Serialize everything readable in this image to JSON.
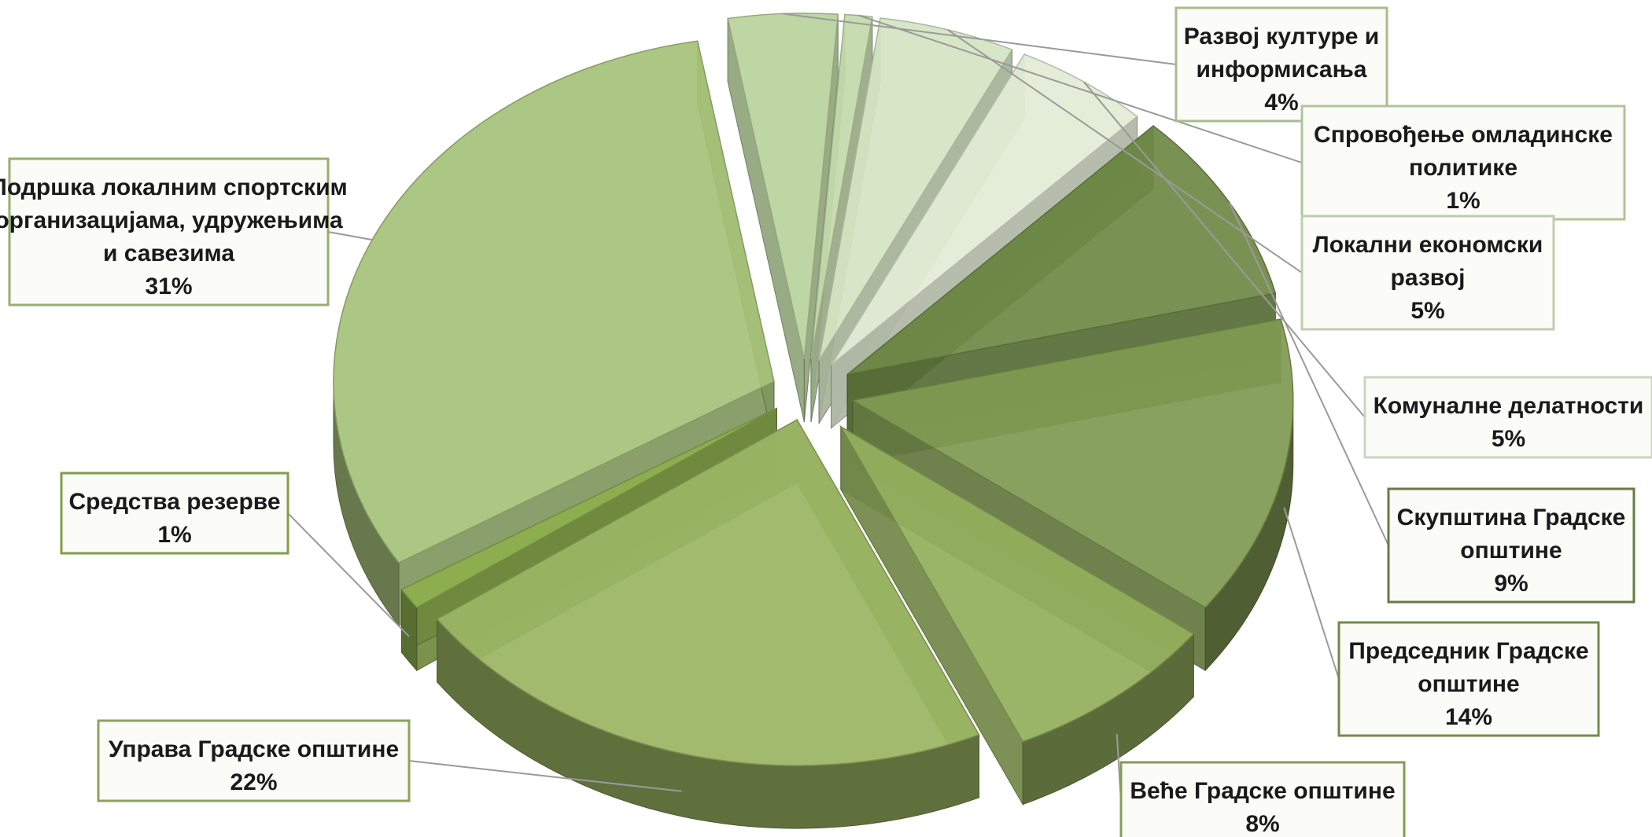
{
  "chart_data": {
    "type": "pie",
    "style": "3d-exploded",
    "legend": "none",
    "slices": [
      {
        "label": "Развој културе и информисања",
        "value": 4,
        "value_label": "4%",
        "color": "#b9d29d"
      },
      {
        "label": "Спровођење омладинске политике",
        "value": 1,
        "value_label": "1%",
        "color": "#c3d9aa"
      },
      {
        "label": "Локални економски развој",
        "value": 5,
        "value_label": "5%",
        "color": "#d4e4c2"
      },
      {
        "label": "Комуналне делатности",
        "value": 5,
        "value_label": "5%",
        "color": "#e2ecd5"
      },
      {
        "label": "Скупштина Градске општине",
        "value": 9,
        "value_label": "9%",
        "color": "#6f8a47"
      },
      {
        "label": "Председник Градске општине",
        "value": 14,
        "value_label": "14%",
        "color": "#7f9a52"
      },
      {
        "label": "Веће Градске општине",
        "value": 8,
        "value_label": "8%",
        "color": "#92ae5d"
      },
      {
        "label": "Управа Градске општине",
        "value": 22,
        "value_label": "22%",
        "color": "#9ab563"
      },
      {
        "label": "Средства резерве",
        "value": 1,
        "value_label": "1%",
        "color": "#8fb050"
      },
      {
        "label": "Подршка локалним спортским организацијама, удружењима и савезима",
        "value": 31,
        "value_label": "31%",
        "color": "#a6c27a"
      }
    ]
  }
}
